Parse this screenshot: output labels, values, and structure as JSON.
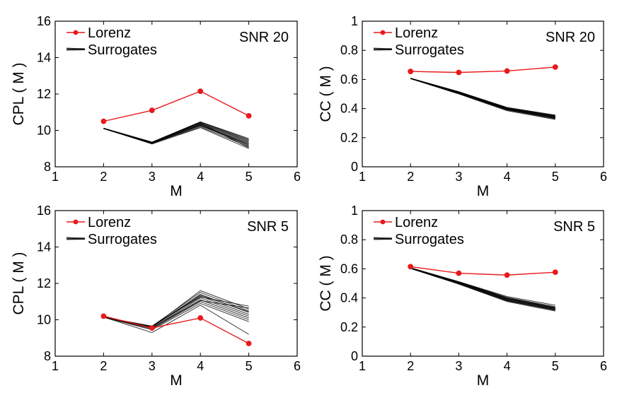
{
  "chart_data": [
    {
      "type": "line",
      "panel": "top-left",
      "xlabel": "M",
      "ylabel": "CPL ( M )",
      "xlim": [
        1,
        6
      ],
      "ylim": [
        8,
        16
      ],
      "xticks": [
        1,
        2,
        3,
        4,
        5,
        6
      ],
      "yticks": [
        8,
        10,
        12,
        14,
        16
      ],
      "annotation": "SNR 20",
      "legend_position": "top-left",
      "legend": [
        "Lorenz",
        "Surrogates"
      ],
      "x": [
        2,
        3,
        4,
        5
      ],
      "series": [
        {
          "name": "Lorenz",
          "color": "#e8191b",
          "markers": true,
          "values": [
            10.5,
            11.1,
            12.15,
            10.8
          ]
        }
      ],
      "surrogates": {
        "name": "Surrogates",
        "color": "#000000",
        "values": [
          [
            10.1,
            9.25,
            10.15,
            9.0
          ],
          [
            10.1,
            9.28,
            10.2,
            9.1
          ],
          [
            10.1,
            9.3,
            10.25,
            9.2
          ],
          [
            10.1,
            9.3,
            10.3,
            9.3
          ],
          [
            10.1,
            9.32,
            10.35,
            9.35
          ],
          [
            10.12,
            9.33,
            10.38,
            9.4
          ],
          [
            10.12,
            9.35,
            10.42,
            9.45
          ],
          [
            10.12,
            9.35,
            10.45,
            9.5
          ],
          [
            10.1,
            9.3,
            10.28,
            9.25
          ],
          [
            10.1,
            9.28,
            10.32,
            9.15
          ],
          [
            10.1,
            9.34,
            10.4,
            9.05
          ],
          [
            10.12,
            9.36,
            10.47,
            9.55
          ]
        ]
      }
    },
    {
      "type": "line",
      "panel": "top-right",
      "xlabel": "M",
      "ylabel": "CC ( M )",
      "xlim": [
        1,
        6
      ],
      "ylim": [
        0,
        1
      ],
      "xticks": [
        1,
        2,
        3,
        4,
        5,
        6
      ],
      "yticks": [
        0,
        0.2,
        0.4,
        0.6,
        0.8,
        1
      ],
      "annotation": "SNR 20",
      "legend_position": "top-left",
      "legend": [
        "Lorenz",
        "Surrogates"
      ],
      "x": [
        2,
        3,
        4,
        5
      ],
      "series": [
        {
          "name": "Lorenz",
          "color": "#e8191b",
          "markers": true,
          "values": [
            0.655,
            0.648,
            0.658,
            0.685
          ]
        }
      ],
      "surrogates": {
        "name": "Surrogates",
        "color": "#000000",
        "values": [
          [
            0.605,
            0.5,
            0.385,
            0.325
          ],
          [
            0.605,
            0.502,
            0.39,
            0.33
          ],
          [
            0.606,
            0.505,
            0.392,
            0.335
          ],
          [
            0.606,
            0.507,
            0.395,
            0.338
          ],
          [
            0.607,
            0.509,
            0.398,
            0.342
          ],
          [
            0.607,
            0.511,
            0.4,
            0.345
          ],
          [
            0.608,
            0.513,
            0.403,
            0.348
          ],
          [
            0.608,
            0.515,
            0.405,
            0.352
          ],
          [
            0.606,
            0.504,
            0.393,
            0.332
          ],
          [
            0.607,
            0.51,
            0.397,
            0.34
          ],
          [
            0.608,
            0.512,
            0.401,
            0.35
          ],
          [
            0.609,
            0.516,
            0.408,
            0.355
          ]
        ]
      }
    },
    {
      "type": "line",
      "panel": "bottom-left",
      "xlabel": "M",
      "ylabel": "CPL ( M )",
      "xlim": [
        1,
        6
      ],
      "ylim": [
        8,
        16
      ],
      "xticks": [
        1,
        2,
        3,
        4,
        5,
        6
      ],
      "yticks": [
        8,
        10,
        12,
        14,
        16
      ],
      "annotation": "SNR 5",
      "legend_position": "top-left",
      "legend": [
        "Lorenz",
        "Surrogates"
      ],
      "x": [
        2,
        3,
        4,
        5
      ],
      "series": [
        {
          "name": "Lorenz",
          "color": "#e8191b",
          "markers": true,
          "values": [
            10.2,
            9.55,
            10.1,
            8.7
          ]
        }
      ],
      "surrogates": {
        "name": "Surrogates",
        "color": "#000000",
        "values": [
          [
            10.15,
            9.3,
            10.8,
            9.2
          ],
          [
            10.15,
            9.45,
            10.9,
            9.9
          ],
          [
            10.15,
            9.5,
            11.0,
            10.0
          ],
          [
            10.15,
            9.55,
            11.1,
            10.1
          ],
          [
            10.15,
            9.55,
            11.2,
            10.2
          ],
          [
            10.15,
            9.6,
            11.3,
            10.3
          ],
          [
            10.15,
            9.6,
            11.4,
            10.4
          ],
          [
            10.15,
            9.65,
            11.5,
            10.5
          ],
          [
            10.15,
            9.6,
            11.6,
            10.6
          ],
          [
            10.15,
            9.65,
            11.25,
            10.75
          ],
          [
            10.15,
            9.55,
            11.05,
            10.65
          ],
          [
            10.15,
            9.62,
            11.35,
            10.45
          ]
        ]
      }
    },
    {
      "type": "line",
      "panel": "bottom-right",
      "xlabel": "M",
      "ylabel": "CC ( M )",
      "xlim": [
        1,
        6
      ],
      "ylim": [
        0,
        1
      ],
      "xticks": [
        1,
        2,
        3,
        4,
        5,
        6
      ],
      "yticks": [
        0,
        0.2,
        0.4,
        0.6,
        0.8,
        1
      ],
      "annotation": "SNR 5",
      "legend_position": "top-left",
      "legend": [
        "Lorenz",
        "Surrogates"
      ],
      "x": [
        2,
        3,
        4,
        5
      ],
      "series": [
        {
          "name": "Lorenz",
          "color": "#e8191b",
          "markers": true,
          "values": [
            0.615,
            0.57,
            0.557,
            0.577
          ]
        }
      ],
      "surrogates": {
        "name": "Surrogates",
        "color": "#000000",
        "values": [
          [
            0.602,
            0.495,
            0.375,
            0.31
          ],
          [
            0.603,
            0.498,
            0.38,
            0.315
          ],
          [
            0.604,
            0.5,
            0.383,
            0.318
          ],
          [
            0.604,
            0.502,
            0.386,
            0.322
          ],
          [
            0.605,
            0.505,
            0.39,
            0.326
          ],
          [
            0.606,
            0.508,
            0.395,
            0.33
          ],
          [
            0.607,
            0.51,
            0.4,
            0.335
          ],
          [
            0.608,
            0.512,
            0.41,
            0.35
          ],
          [
            0.603,
            0.499,
            0.381,
            0.32
          ],
          [
            0.605,
            0.506,
            0.392,
            0.328
          ],
          [
            0.606,
            0.509,
            0.398,
            0.333
          ],
          [
            0.607,
            0.511,
            0.404,
            0.34
          ]
        ]
      }
    }
  ]
}
